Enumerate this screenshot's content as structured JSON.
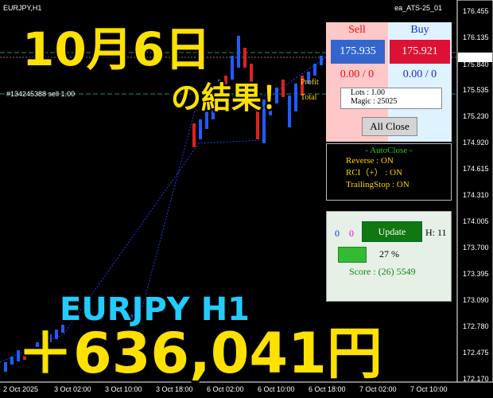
{
  "header": {
    "symbol": "EURJPY,H1",
    "ea_name": "ea_ATS-25_01"
  },
  "price_axis": [
    "176.455",
    "176.135",
    "175.921",
    "175.840",
    "175.535",
    "175.230",
    "174.920",
    "174.615",
    "174.310",
    "174.005",
    "173.700",
    "173.395",
    "173.090",
    "172.780",
    "172.475",
    "172.170"
  ],
  "time_axis": [
    "2 Oct 2025",
    "3 Oct 02:00",
    "3 Oct 10:00",
    "3 Oct 18:00",
    "6 Oct 02:00",
    "6 Oct 10:00",
    "6 Oct 18:00",
    "7 Oct 02:00",
    "7 Oct 10:00"
  ],
  "order_line": "#134245388 sell 1.00",
  "trade_panel": {
    "sell_label": "Sell",
    "buy_label": "Buy",
    "sell_price": "175.935",
    "buy_price": "175.921",
    "sell_pl": "0.00 / 0",
    "buy_pl": "0.00 / 0",
    "lots": "Lots : 1.00",
    "magic": "Magic : 25025",
    "close_all": "All Close"
  },
  "autoclose_panel": {
    "title": "- AutoClose -",
    "rows": [
      "Reverse : ON",
      "RCI（+） : ON",
      "TrailingStop : ON"
    ]
  },
  "score_panel": {
    "count_a": "0",
    "count_b": "0",
    "update": "Update",
    "hours": "H: 11",
    "percent": "27 %",
    "score": "Score : (26) 5549"
  },
  "overlay": {
    "date": "10月6日",
    "result": "の結果！",
    "pair": "EURJPY H1",
    "profit": "＋636,041円",
    "profit_label": "Profit",
    "total_label": "Total"
  }
}
